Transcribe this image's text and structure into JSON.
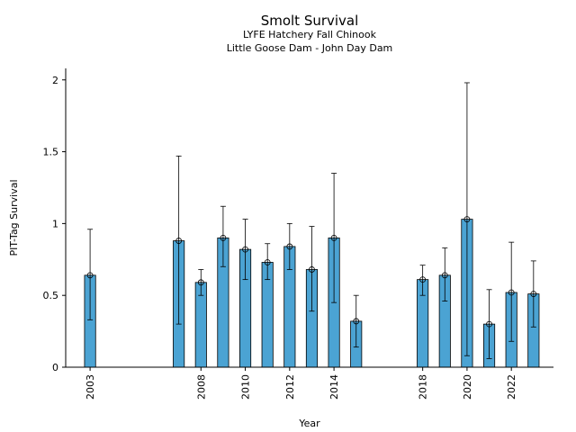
{
  "chart_data": {
    "type": "bar",
    "title": "Smolt Survival",
    "subtitle_lines": [
      "LYFE Hatchery Fall Chinook",
      "Little Goose Dam - John Day Dam"
    ],
    "xlabel": "Year",
    "ylabel": "PIT-Tag Survival",
    "xlim": [
      2001.9,
      2023.9
    ],
    "ylim": [
      0,
      2.08
    ],
    "x_ticks": [
      2003,
      2008,
      2010,
      2012,
      2014,
      2018,
      2020,
      2022
    ],
    "y_ticks": [
      0,
      0.5,
      1,
      1.5,
      2
    ],
    "y_tick_labels": [
      "0",
      "0.5",
      "1",
      "1.5",
      "2"
    ],
    "bar_color": "#4ba3d3",
    "points": [
      {
        "year": 2003,
        "value": 0.64,
        "lower": 0.33,
        "upper": 0.96
      },
      {
        "year": 2007,
        "value": 0.88,
        "lower": 0.3,
        "upper": 1.47
      },
      {
        "year": 2008,
        "value": 0.59,
        "lower": 0.5,
        "upper": 0.68
      },
      {
        "year": 2009,
        "value": 0.9,
        "lower": 0.7,
        "upper": 1.12
      },
      {
        "year": 2010,
        "value": 0.82,
        "lower": 0.61,
        "upper": 1.03
      },
      {
        "year": 2011,
        "value": 0.73,
        "lower": 0.61,
        "upper": 0.86
      },
      {
        "year": 2012,
        "value": 0.84,
        "lower": 0.68,
        "upper": 1.0
      },
      {
        "year": 2013,
        "value": 0.68,
        "lower": 0.39,
        "upper": 0.98
      },
      {
        "year": 2014,
        "value": 0.9,
        "lower": 0.45,
        "upper": 1.35
      },
      {
        "year": 2015,
        "value": 0.32,
        "lower": 0.14,
        "upper": 0.5
      },
      {
        "year": 2018,
        "value": 0.61,
        "lower": 0.5,
        "upper": 0.71
      },
      {
        "year": 2019,
        "value": 0.64,
        "lower": 0.46,
        "upper": 0.83
      },
      {
        "year": 2020,
        "value": 1.03,
        "lower": 0.08,
        "upper": 1.98
      },
      {
        "year": 2021,
        "value": 0.3,
        "lower": 0.06,
        "upper": 0.54
      },
      {
        "year": 2022,
        "value": 0.52,
        "lower": 0.18,
        "upper": 0.87
      },
      {
        "year": 2023,
        "value": 0.51,
        "lower": 0.28,
        "upper": 0.74
      }
    ]
  }
}
